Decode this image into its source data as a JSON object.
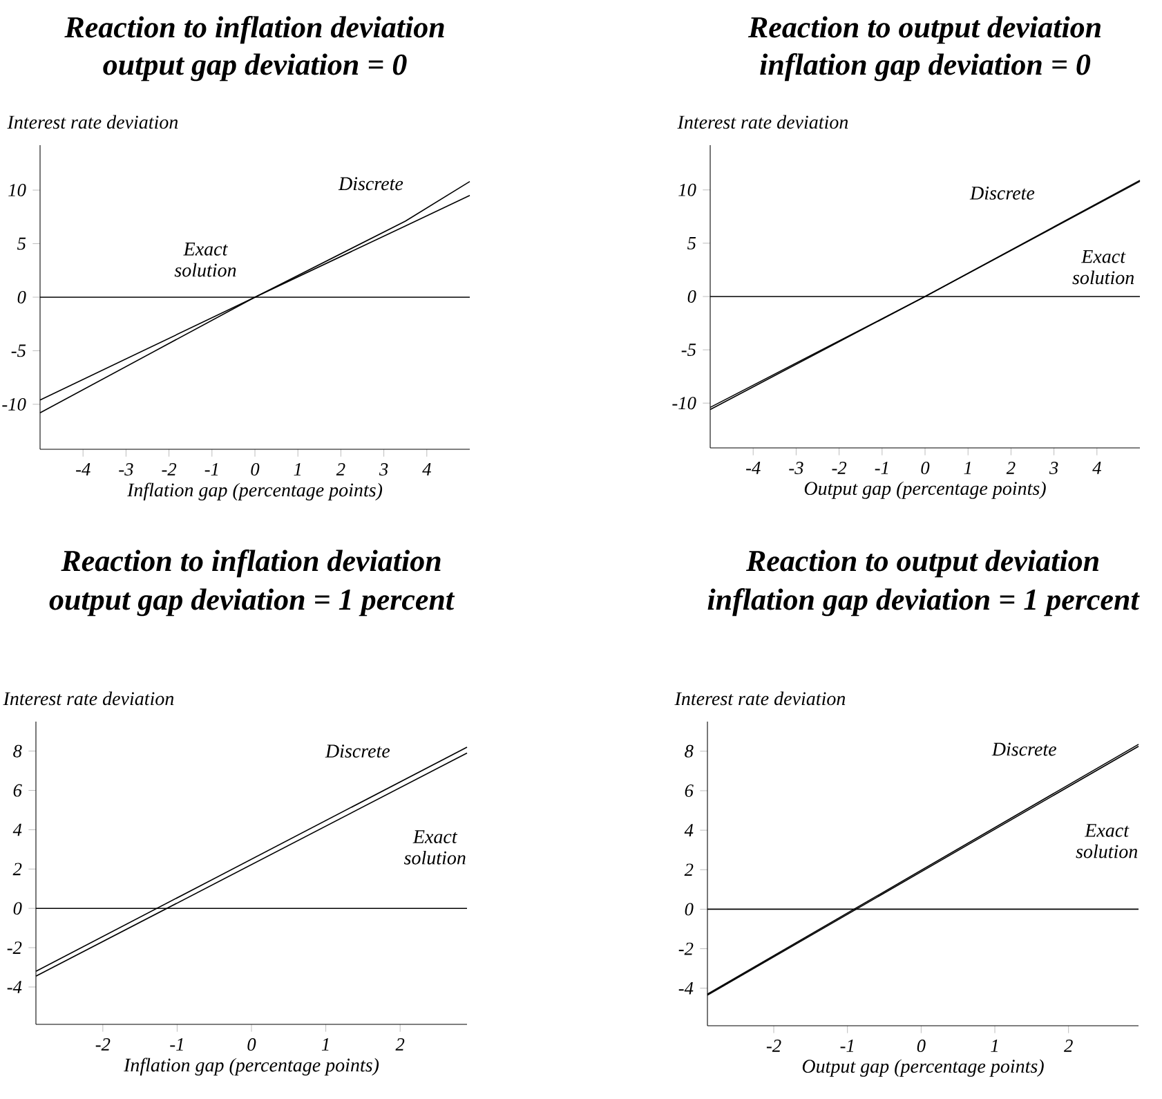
{
  "chart_data": [
    {
      "type": "line",
      "title": "Reaction to inflation deviation",
      "subtitle": "output gap deviation = 0",
      "xlabel": "Inflation gap (percentage points)",
      "ylabel": "Interest rate deviation",
      "xlim": [
        -5,
        5
      ],
      "ylim": [
        -14.2,
        14.2
      ],
      "xticks": [
        -4,
        -3,
        -2,
        -1,
        0,
        1,
        2,
        3,
        4
      ],
      "yticks": [
        -10,
        -5,
        0,
        5,
        10
      ],
      "series": [
        {
          "color": "#000000",
          "x": [
            -5,
            0,
            3.5,
            5
          ],
          "values": [
            -10.8,
            0,
            7.1,
            10.8
          ]
        },
        {
          "color": "#000000",
          "x": [
            -5,
            0,
            3.5,
            5
          ],
          "values": [
            -9.6,
            0,
            6.65,
            9.5
          ]
        }
      ],
      "ref_lines": [
        {
          "axis": "y",
          "value": 0,
          "color": "#000000"
        }
      ],
      "annotations": [
        "Discrete",
        "Exact solution"
      ]
    },
    {
      "type": "line",
      "title": "Reaction to output deviation",
      "subtitle": "inflation gap deviation = 0",
      "xlabel": "Output gap (percentage points)",
      "ylabel": "Interest rate deviation",
      "xlim": [
        -5,
        5
      ],
      "ylim": [
        -14.2,
        14.2
      ],
      "xticks": [
        -4,
        -3,
        -2,
        -1,
        0,
        1,
        2,
        3,
        4
      ],
      "yticks": [
        -10,
        -5,
        0,
        5,
        10
      ],
      "series": [
        {
          "color": "#000000",
          "x": [
            -5,
            0,
            5
          ],
          "values": [
            -10.6,
            0,
            10.9
          ]
        },
        {
          "color": "#000000",
          "x": [
            -5,
            0,
            5
          ],
          "values": [
            -10.4,
            0,
            10.8
          ]
        }
      ],
      "ref_lines": [
        {
          "axis": "y",
          "value": 0,
          "color": "#000000"
        }
      ],
      "annotations": [
        "Discrete",
        "Exact solution"
      ]
    },
    {
      "type": "line",
      "title": "Reaction to inflation deviation",
      "subtitle": "output gap deviation = 1 percent",
      "xlabel": "Inflation gap (percentage points)",
      "ylabel": "Interest rate deviation",
      "xlim": [
        -2.9,
        2.9
      ],
      "ylim": [
        -5.9,
        9.5
      ],
      "xticks": [
        -2,
        -1,
        0,
        1,
        2
      ],
      "yticks": [
        -4,
        -2,
        0,
        2,
        4,
        6,
        8
      ],
      "series": [
        {
          "color": "#000000",
          "x": [
            -2.9,
            2.9
          ],
          "values": [
            -3.2,
            8.2
          ]
        },
        {
          "color": "#000000",
          "x": [
            -2.9,
            2.9
          ],
          "values": [
            -3.45,
            7.9
          ]
        }
      ],
      "ref_lines": [
        {
          "axis": "y",
          "value": 0,
          "color": "#000000"
        }
      ],
      "annotations": [
        "Discrete",
        "Exact solution"
      ]
    },
    {
      "type": "line",
      "title": "Reaction to output deviation",
      "subtitle": "inflation gap deviation = 1 percent",
      "xlabel": "Output gap (percentage points)",
      "ylabel": "Interest rate deviation",
      "xlim": [
        -2.9,
        2.95
      ],
      "ylim": [
        -5.9,
        9.5
      ],
      "xticks": [
        -2,
        -1,
        0,
        1,
        2
      ],
      "yticks": [
        -4,
        -2,
        0,
        2,
        4,
        6,
        8
      ],
      "series": [
        {
          "color": "#000000",
          "x": [
            -2.9,
            2.95
          ],
          "values": [
            -4.3,
            8.35
          ]
        },
        {
          "color": "#000000",
          "x": [
            -2.9,
            2.95
          ],
          "values": [
            -4.35,
            8.25
          ]
        }
      ],
      "ref_lines": [
        {
          "axis": "y",
          "value": 0,
          "color": "#000000"
        }
      ],
      "annotations": [
        "Discrete",
        "Exact solution"
      ]
    }
  ]
}
